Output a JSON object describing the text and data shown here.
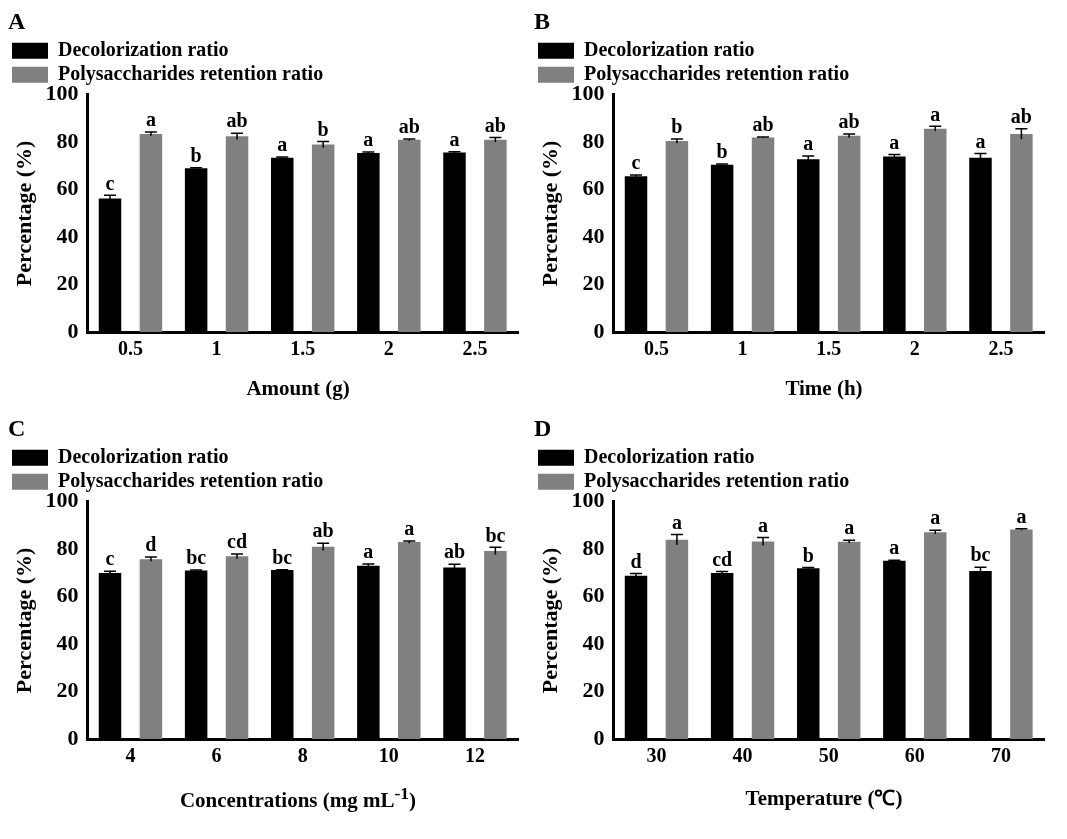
{
  "chart_data": [
    {
      "type": "bar",
      "title": "A",
      "xlabel": "Amount (g)",
      "ylabel": "Percentage (%)",
      "categories": [
        "0.5",
        "1",
        "1.5",
        "2",
        "2.5"
      ],
      "ylim": [
        0,
        100
      ],
      "yticks": [
        0,
        20,
        40,
        60,
        80,
        100
      ],
      "grid": false,
      "legend": "top left",
      "series": [
        {
          "name": "Decolorization ratio",
          "color": "#000000",
          "values": [
            56.3,
            69,
            73.5,
            75.5,
            75.7
          ],
          "errors": [
            1.3,
            0.2,
            0.3,
            0.4,
            0.3
          ],
          "value_labels": [
            "c",
            "b",
            "a",
            "a",
            "a"
          ]
        },
        {
          "name": "Polysaccharides retention ratio",
          "color": "#808080",
          "values": [
            83.5,
            82.5,
            79,
            81,
            81
          ],
          "errors": [
            0.8,
            1.3,
            1.3,
            0.4,
            1.0
          ],
          "value_labels": [
            "a",
            "ab",
            "b",
            "ab",
            "ab"
          ]
        }
      ]
    },
    {
      "type": "bar",
      "title": "B",
      "xlabel": "Time (h)",
      "ylabel": "Percentage (%)",
      "categories": [
        "0.5",
        "1",
        "1.5",
        "2",
        "2.5"
      ],
      "ylim": [
        0,
        100
      ],
      "yticks": [
        0,
        20,
        40,
        60,
        80,
        100
      ],
      "grid": false,
      "legend": "top left",
      "series": [
        {
          "name": "Decolorization ratio",
          "color": "#000000",
          "values": [
            65.7,
            70.5,
            72.8,
            74,
            73.5
          ],
          "errors": [
            0.5,
            0.3,
            1.4,
            0.8,
            1.8
          ],
          "value_labels": [
            "c",
            "b",
            "a",
            "a",
            "a"
          ]
        },
        {
          "name": "Polysaccharides retention ratio",
          "color": "#808080",
          "values": [
            80.5,
            82,
            82.7,
            85.7,
            83.5
          ],
          "errors": [
            0.9,
            0.2,
            0.8,
            1.0,
            2.2
          ],
          "value_labels": [
            "b",
            "ab",
            "ab",
            "a",
            "ab"
          ]
        }
      ]
    },
    {
      "type": "bar",
      "title": "C",
      "xlabel": "Concentrations (mg mL$^{-1}$)",
      "ylabel": "Percentage (%)",
      "categories": [
        "4",
        "6",
        "8",
        "10",
        "12"
      ],
      "ylim": [
        0,
        100
      ],
      "yticks": [
        0,
        20,
        40,
        60,
        80,
        100
      ],
      "grid": false,
      "legend": "top left",
      "series": [
        {
          "name": "Decolorization ratio",
          "color": "#000000",
          "values": [
            70,
            71,
            71.2,
            73,
            72.3
          ],
          "errors": [
            0.7,
            0.3,
            0.2,
            0.8,
            1.4
          ],
          "value_labels": [
            "c",
            "bc",
            "bc",
            "a",
            "ab"
          ]
        },
        {
          "name": "Polysaccharides retention ratio",
          "color": "#808080",
          "values": [
            75.8,
            77,
            81,
            83,
            79.3
          ],
          "errors": [
            0.9,
            1.0,
            1.5,
            0.5,
            1.5
          ],
          "value_labels": [
            "d",
            "cd",
            "ab",
            "a",
            "bc"
          ]
        }
      ]
    },
    {
      "type": "bar",
      "title": "D",
      "xlabel": "Temperature (℃)",
      "ylabel": "Percentage (%)",
      "categories": [
        "30",
        "40",
        "50",
        "60",
        "70"
      ],
      "ylim": [
        0,
        100
      ],
      "yticks": [
        0,
        20,
        40,
        60,
        80,
        100
      ],
      "grid": false,
      "legend": "top left",
      "series": [
        {
          "name": "Decolorization ratio",
          "color": "#000000",
          "values": [
            68.8,
            70,
            72,
            75.2,
            70.8
          ],
          "errors": [
            1.0,
            0.6,
            0.3,
            0.2,
            1.6
          ],
          "value_labels": [
            "d",
            "cd",
            "b",
            "a",
            "bc"
          ]
        },
        {
          "name": "Polysaccharides retention ratio",
          "color": "#808080",
          "values": [
            84,
            83.3,
            83.2,
            87.2,
            88.3
          ],
          "errors": [
            2.2,
            1.7,
            0.6,
            0.8,
            0.3
          ],
          "value_labels": [
            "a",
            "a",
            "a",
            "a",
            "a"
          ]
        }
      ]
    }
  ]
}
